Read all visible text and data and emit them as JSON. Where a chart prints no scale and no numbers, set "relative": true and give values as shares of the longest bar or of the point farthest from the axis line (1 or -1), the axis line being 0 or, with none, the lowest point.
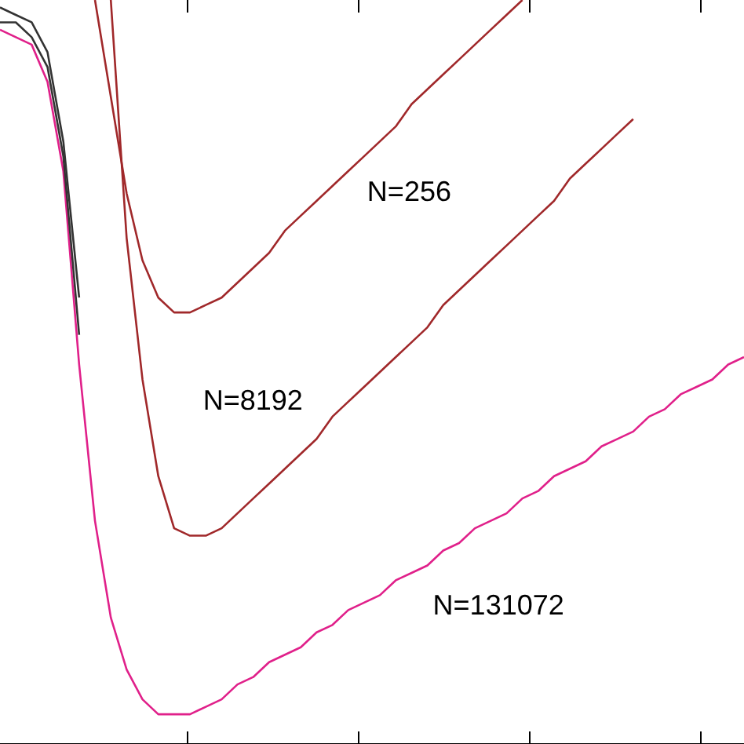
{
  "chart_data": {
    "type": "line",
    "relative": true,
    "tick_labels": false,
    "legend": false,
    "marker": "none",
    "line_style": "solid",
    "categories": [
      null,
      null,
      null,
      null,
      null,
      null,
      null,
      null,
      null,
      null,
      null,
      null,
      null,
      null,
      null,
      null,
      null,
      null,
      null,
      null,
      null,
      null,
      null,
      null,
      null,
      null,
      null,
      null,
      null,
      null,
      null,
      null,
      null,
      null,
      null,
      null,
      null,
      null,
      null,
      null,
      null,
      null,
      null,
      null,
      null,
      null,
      null,
      null
    ],
    "annotations": [
      "N=256",
      "N=8192",
      "N=131072"
    ],
    "series": [
      {
        "color": "#333333",
        "values": [
          0.99,
          0.98,
          0.97,
          0.93,
          0.81,
          0.6,
          null,
          null,
          null,
          null,
          null,
          null,
          null,
          null,
          null,
          null,
          null,
          null,
          null,
          null,
          null,
          null,
          null,
          null,
          null,
          null,
          null,
          null,
          null,
          null,
          null,
          null,
          null,
          null,
          null,
          null,
          null,
          null,
          null,
          null,
          null,
          null,
          null,
          null,
          null,
          null,
          null,
          null
        ]
      },
      {
        "color": "#333333",
        "values": [
          0.97,
          0.97,
          0.95,
          0.91,
          0.79,
          0.55,
          null,
          null,
          null,
          null,
          null,
          null,
          null,
          null,
          null,
          null,
          null,
          null,
          null,
          null,
          null,
          null,
          null,
          null,
          null,
          null,
          null,
          null,
          null,
          null,
          null,
          null,
          null,
          null,
          null,
          null,
          null,
          null,
          null,
          null,
          null,
          null,
          null,
          null,
          null,
          null,
          null,
          null
        ]
      },
      {
        "color": "#a0282a",
        "values": [
          null,
          null,
          null,
          null,
          null,
          null,
          1.0,
          0.87,
          0.74,
          0.65,
          0.6,
          0.58,
          0.58,
          0.59,
          0.6,
          0.62,
          0.64,
          0.66,
          0.69,
          0.71,
          0.73,
          0.75,
          0.77,
          0.79,
          0.81,
          0.83,
          0.86,
          0.88,
          0.9,
          0.92,
          0.94,
          0.96,
          0.98,
          1.0,
          null,
          null,
          null,
          null,
          null,
          null,
          null,
          null,
          null,
          null,
          null,
          null,
          null,
          null
        ]
      },
      {
        "color": "#a0282a",
        "values": [
          null,
          null,
          null,
          null,
          null,
          null,
          null,
          1.0,
          0.68,
          0.49,
          0.36,
          0.29,
          0.28,
          0.28,
          0.29,
          0.31,
          0.33,
          0.35,
          0.37,
          0.39,
          0.41,
          0.44,
          0.46,
          0.48,
          0.5,
          0.52,
          0.54,
          0.56,
          0.59,
          0.61,
          0.63,
          0.65,
          0.67,
          0.69,
          0.71,
          0.73,
          0.76,
          0.78,
          0.8,
          0.82,
          0.84,
          null,
          null,
          null,
          null,
          null,
          null,
          null
        ]
      },
      {
        "color": "#e0208a",
        "values": [
          0.96,
          0.95,
          0.94,
          0.89,
          0.77,
          0.51,
          0.3,
          0.17,
          0.1,
          0.06,
          0.04,
          0.04,
          0.04,
          0.05,
          0.06,
          0.08,
          0.09,
          0.11,
          0.12,
          0.13,
          0.15,
          0.16,
          0.18,
          0.19,
          0.2,
          0.22,
          0.23,
          0.24,
          0.26,
          0.27,
          0.29,
          0.3,
          0.31,
          0.33,
          0.34,
          0.36,
          0.37,
          0.38,
          0.4,
          0.41,
          0.42,
          0.44,
          0.45,
          0.47,
          0.48,
          0.49,
          0.51,
          0.52
        ]
      }
    ]
  }
}
